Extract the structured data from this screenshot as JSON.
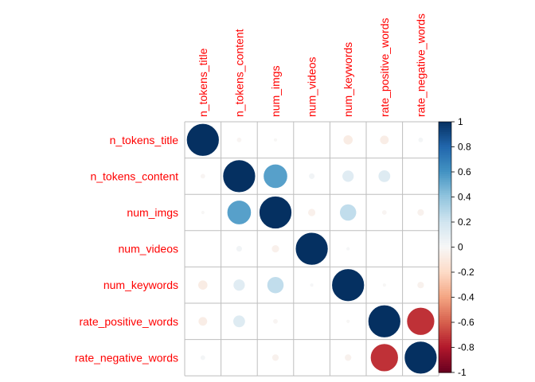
{
  "chart_data": {
    "type": "heatmap",
    "variables": [
      "n_tokens_title",
      "n_tokens_content",
      "num_imgs",
      "num_videos",
      "num_keywords",
      "rate_positive_words",
      "rate_negative_words"
    ],
    "matrix": [
      [
        1.0,
        -0.02,
        -0.01,
        0.0,
        -0.08,
        -0.07,
        0.02
      ],
      [
        -0.02,
        1.0,
        0.55,
        0.03,
        0.12,
        0.13,
        0.0
      ],
      [
        -0.01,
        0.55,
        1.0,
        -0.05,
        0.25,
        -0.02,
        -0.04
      ],
      [
        0.0,
        0.03,
        -0.05,
        1.0,
        0.01,
        0.0,
        0.0
      ],
      [
        -0.08,
        0.12,
        0.25,
        0.01,
        1.0,
        -0.01,
        -0.04
      ],
      [
        -0.07,
        0.13,
        -0.02,
        0.0,
        -0.01,
        1.0,
        -0.73
      ],
      [
        0.02,
        0.0,
        -0.04,
        0.0,
        -0.04,
        -0.73,
        1.0
      ]
    ],
    "colorbar_ticks": [
      "1",
      "0.8",
      "0.6",
      "0.4",
      "0.2",
      "0",
      "-0.2",
      "-0.4",
      "-0.6",
      "-0.8",
      "-1"
    ],
    "value_range": [
      -1,
      1
    ],
    "colors": {
      "label": "#ff0000",
      "positive_max": "#053061",
      "neutral": "#f7f7f7",
      "negative_max": "#67001f",
      "grid": "#bebebe"
    }
  }
}
